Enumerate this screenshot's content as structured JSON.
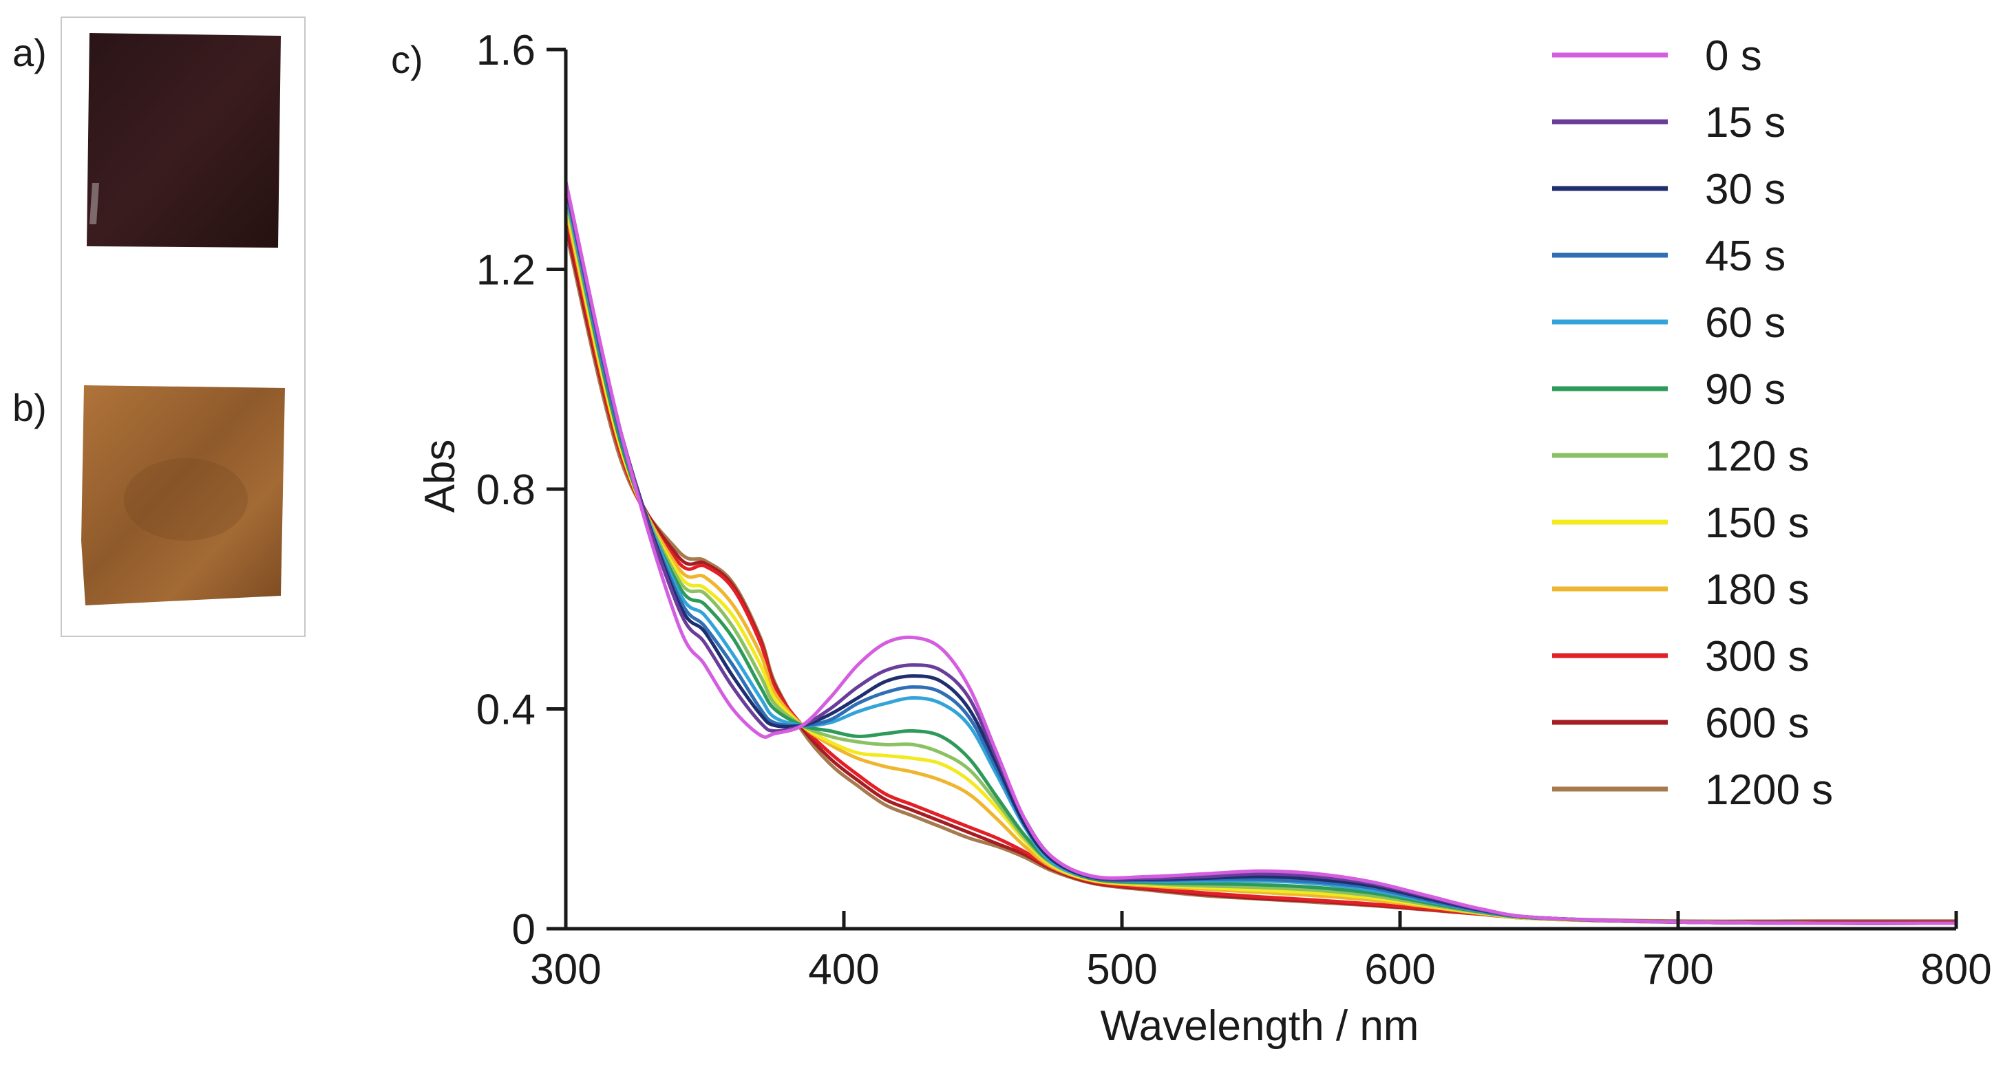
{
  "panels": {
    "a_label": "a)",
    "b_label": "b)",
    "c_label": "c)",
    "sample_a_color": "#2a1417",
    "sample_b_color": "#9a5f2c"
  },
  "chart_data": {
    "type": "line",
    "title": "",
    "xlabel": "Wavelength / nm",
    "ylabel": "Abs",
    "xlim": [
      300,
      800
    ],
    "ylim": [
      0,
      1.6
    ],
    "xticks": [
      300,
      400,
      500,
      600,
      700,
      800
    ],
    "yticks": [
      0,
      0.4,
      0.8,
      1.2,
      1.6
    ],
    "xtick_labels": [
      "300",
      "400",
      "500",
      "600",
      "700",
      "800"
    ],
    "ytick_labels": [
      "0",
      "0.4",
      "0.8",
      "1.2",
      "1.6"
    ],
    "legend_position": "top-right",
    "x": [
      300,
      320,
      340,
      350,
      360,
      370,
      375,
      385,
      395,
      405,
      415,
      425,
      435,
      445,
      455,
      465,
      475,
      490,
      510,
      530,
      550,
      570,
      590,
      610,
      630,
      650,
      700,
      750,
      800
    ],
    "series": [
      {
        "name": "0 s",
        "color": "#d45de0",
        "values": [
          1.36,
          0.9,
          0.56,
          0.48,
          0.4,
          0.352,
          0.355,
          0.37,
          0.42,
          0.48,
          0.52,
          0.53,
          0.51,
          0.44,
          0.32,
          0.2,
          0.13,
          0.095,
          0.095,
          0.1,
          0.105,
          0.1,
          0.085,
          0.06,
          0.035,
          0.02,
          0.012,
          0.01,
          0.01
        ]
      },
      {
        "name": "15 s",
        "color": "#6a3d9a",
        "values": [
          1.35,
          0.9,
          0.59,
          0.52,
          0.44,
          0.375,
          0.36,
          0.37,
          0.4,
          0.44,
          0.47,
          0.48,
          0.47,
          0.42,
          0.31,
          0.2,
          0.13,
          0.094,
          0.092,
          0.095,
          0.1,
          0.095,
          0.082,
          0.058,
          0.034,
          0.02,
          0.012,
          0.01,
          0.01
        ]
      },
      {
        "name": "30 s",
        "color": "#1f2e6e",
        "values": [
          1.35,
          0.9,
          0.6,
          0.54,
          0.46,
          0.39,
          0.37,
          0.37,
          0.39,
          0.42,
          0.45,
          0.46,
          0.45,
          0.4,
          0.3,
          0.19,
          0.125,
          0.093,
          0.09,
          0.092,
          0.095,
          0.09,
          0.078,
          0.055,
          0.033,
          0.02,
          0.012,
          0.01,
          0.01
        ]
      },
      {
        "name": "45 s",
        "color": "#2e6fb5",
        "values": [
          1.35,
          0.89,
          0.61,
          0.55,
          0.48,
          0.4,
          0.375,
          0.37,
          0.38,
          0.41,
          0.43,
          0.44,
          0.43,
          0.385,
          0.29,
          0.19,
          0.125,
          0.092,
          0.088,
          0.09,
          0.09,
          0.085,
          0.074,
          0.052,
          0.032,
          0.02,
          0.012,
          0.01,
          0.01
        ]
      },
      {
        "name": "60 s",
        "color": "#33a4d9",
        "values": [
          1.34,
          0.89,
          0.62,
          0.57,
          0.5,
          0.42,
          0.385,
          0.37,
          0.375,
          0.395,
          0.41,
          0.42,
          0.41,
          0.37,
          0.28,
          0.185,
          0.12,
          0.092,
          0.086,
          0.087,
          0.087,
          0.082,
          0.07,
          0.05,
          0.031,
          0.02,
          0.012,
          0.01,
          0.01
        ]
      },
      {
        "name": "90 s",
        "color": "#2e9a5a",
        "values": [
          1.34,
          0.88,
          0.63,
          0.59,
          0.53,
          0.44,
          0.4,
          0.37,
          0.36,
          0.35,
          0.355,
          0.36,
          0.35,
          0.31,
          0.24,
          0.17,
          0.12,
          0.09,
          0.084,
          0.082,
          0.08,
          0.075,
          0.065,
          0.047,
          0.03,
          0.019,
          0.012,
          0.01,
          0.01
        ]
      },
      {
        "name": "120 s",
        "color": "#8cc163",
        "values": [
          1.33,
          0.88,
          0.64,
          0.61,
          0.55,
          0.46,
          0.41,
          0.37,
          0.35,
          0.34,
          0.335,
          0.335,
          0.32,
          0.29,
          0.23,
          0.165,
          0.118,
          0.09,
          0.082,
          0.078,
          0.075,
          0.07,
          0.06,
          0.044,
          0.029,
          0.019,
          0.012,
          0.01,
          0.01
        ]
      },
      {
        "name": "150 s",
        "color": "#f2ea1f",
        "values": [
          1.32,
          0.87,
          0.65,
          0.62,
          0.57,
          0.48,
          0.42,
          0.37,
          0.34,
          0.32,
          0.315,
          0.31,
          0.3,
          0.27,
          0.22,
          0.16,
          0.115,
          0.088,
          0.08,
          0.075,
          0.07,
          0.065,
          0.056,
          0.042,
          0.028,
          0.018,
          0.012,
          0.01,
          0.01
        ]
      },
      {
        "name": "180 s",
        "color": "#f0b52e",
        "values": [
          1.31,
          0.87,
          0.66,
          0.64,
          0.59,
          0.5,
          0.43,
          0.37,
          0.335,
          0.31,
          0.295,
          0.285,
          0.27,
          0.245,
          0.2,
          0.15,
          0.112,
          0.087,
          0.078,
          0.072,
          0.066,
          0.06,
          0.052,
          0.04,
          0.027,
          0.018,
          0.012,
          0.01,
          0.01
        ]
      },
      {
        "name": "300 s",
        "color": "#e21f26",
        "values": [
          1.3,
          0.86,
          0.67,
          0.66,
          0.62,
          0.52,
          0.44,
          0.37,
          0.32,
          0.28,
          0.245,
          0.225,
          0.205,
          0.185,
          0.165,
          0.14,
          0.11,
          0.085,
          0.074,
          0.065,
          0.058,
          0.052,
          0.045,
          0.036,
          0.026,
          0.018,
          0.012,
          0.01,
          0.01
        ]
      },
      {
        "name": "600 s",
        "color": "#a51d22",
        "values": [
          1.28,
          0.86,
          0.68,
          0.665,
          0.625,
          0.525,
          0.445,
          0.365,
          0.31,
          0.27,
          0.235,
          0.215,
          0.195,
          0.175,
          0.155,
          0.135,
          0.108,
          0.083,
          0.072,
          0.062,
          0.055,
          0.05,
          0.043,
          0.035,
          0.026,
          0.018,
          0.012,
          0.012,
          0.012
        ]
      },
      {
        "name": "1200 s",
        "color": "#a67a4e",
        "values": [
          1.27,
          0.85,
          0.69,
          0.67,
          0.63,
          0.53,
          0.45,
          0.36,
          0.3,
          0.26,
          0.225,
          0.205,
          0.185,
          0.165,
          0.15,
          0.13,
          0.105,
          0.082,
          0.07,
          0.06,
          0.054,
          0.048,
          0.042,
          0.034,
          0.026,
          0.019,
          0.014,
          0.014,
          0.014
        ]
      }
    ]
  }
}
